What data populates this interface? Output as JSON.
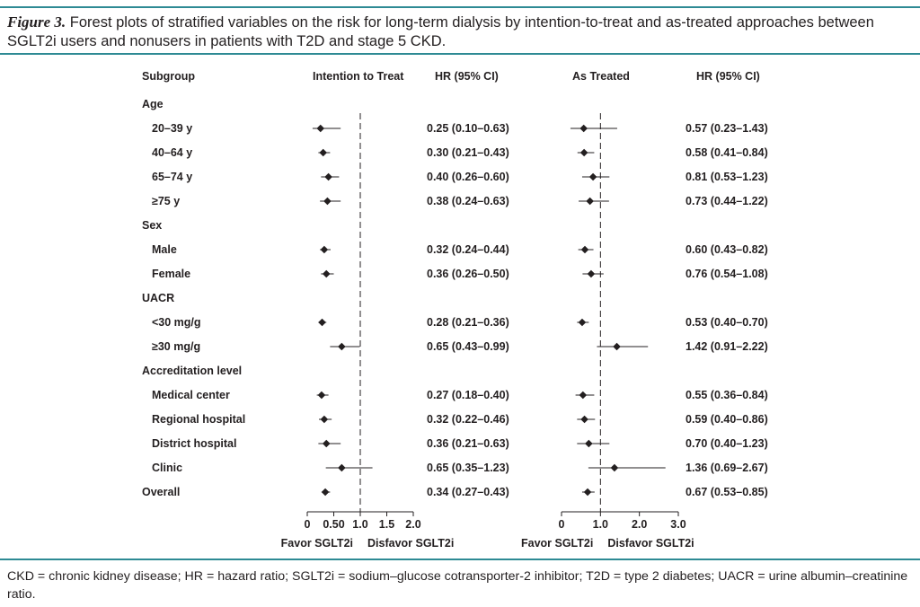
{
  "caption": {
    "figure_label": "Figure 3.",
    "text": " Forest plots of stratified variables on the risk for long-term dialysis by intention-to-treat and as-treated approaches between SGLT2i users and nonusers in patients with T2D and stage 5 CKD."
  },
  "footnote": "CKD = chronic kidney disease; HR = hazard ratio; SGLT2i = sodium–glucose cotransporter-2 inhibitor; T2D = type 2 diabetes; UACR = urine albumin–creatinine ratio.",
  "headers": {
    "subgroup": "Subgroup",
    "itt": "Intention to Treat",
    "itt_hr": "HR (95% CI)",
    "at": "As Treated",
    "at_hr": "HR (95% CI)"
  },
  "chart_data": [
    {
      "type": "forest",
      "name": "Intention to Treat",
      "reference_line": 1.0,
      "xlim": [
        0,
        2.0
      ],
      "ticks": [
        0,
        0.5,
        1.0,
        1.5,
        2.0
      ],
      "tick_labels": [
        "0",
        "0.50",
        "1.0",
        "1.5",
        "2.0"
      ],
      "favor_left": "Favor SGLT2i",
      "favor_right": "Disfavor SGLT2i"
    },
    {
      "type": "forest",
      "name": "As Treated",
      "reference_line": 1.0,
      "xlim": [
        0,
        3.0
      ],
      "ticks": [
        0,
        1.0,
        2.0,
        3.0
      ],
      "tick_labels": [
        "0",
        "1.0",
        "2.0",
        "3.0"
      ],
      "favor_left": "Favor SGLT2i",
      "favor_right": "Disfavor SGLT2i"
    }
  ],
  "rows": [
    {
      "kind": "group",
      "label": "Age"
    },
    {
      "kind": "sub",
      "label": "20–39 y",
      "itt": {
        "hr": 0.25,
        "lo": 0.1,
        "hi": 0.63,
        "text": "0.25 (0.10–0.63)"
      },
      "at": {
        "hr": 0.57,
        "lo": 0.23,
        "hi": 1.43,
        "text": "0.57 (0.23–1.43)"
      }
    },
    {
      "kind": "sub",
      "label": "40–64 y",
      "itt": {
        "hr": 0.3,
        "lo": 0.21,
        "hi": 0.43,
        "text": "0.30 (0.21–0.43)"
      },
      "at": {
        "hr": 0.58,
        "lo": 0.41,
        "hi": 0.84,
        "text": "0.58 (0.41–0.84)"
      }
    },
    {
      "kind": "sub",
      "label": "65–74 y",
      "itt": {
        "hr": 0.4,
        "lo": 0.26,
        "hi": 0.6,
        "text": "0.40 (0.26–0.60)"
      },
      "at": {
        "hr": 0.81,
        "lo": 0.53,
        "hi": 1.23,
        "text": "0.81 (0.53–1.23)"
      }
    },
    {
      "kind": "sub",
      "label": "≥75 y",
      "itt": {
        "hr": 0.38,
        "lo": 0.24,
        "hi": 0.63,
        "text": "0.38 (0.24–0.63)"
      },
      "at": {
        "hr": 0.73,
        "lo": 0.44,
        "hi": 1.22,
        "text": "0.73 (0.44–1.22)"
      }
    },
    {
      "kind": "group",
      "label": "Sex"
    },
    {
      "kind": "sub",
      "label": "Male",
      "itt": {
        "hr": 0.32,
        "lo": 0.24,
        "hi": 0.44,
        "text": "0.32 (0.24–0.44)"
      },
      "at": {
        "hr": 0.6,
        "lo": 0.43,
        "hi": 0.82,
        "text": "0.60 (0.43–0.82)"
      }
    },
    {
      "kind": "sub",
      "label": "Female",
      "itt": {
        "hr": 0.36,
        "lo": 0.26,
        "hi": 0.5,
        "text": "0.36 (0.26–0.50)"
      },
      "at": {
        "hr": 0.76,
        "lo": 0.54,
        "hi": 1.08,
        "text": "0.76 (0.54–1.08)"
      }
    },
    {
      "kind": "group",
      "label": "UACR"
    },
    {
      "kind": "sub",
      "label": "<30 mg/g",
      "itt": {
        "hr": 0.28,
        "lo": 0.21,
        "hi": 0.36,
        "text": "0.28 (0.21–0.36)"
      },
      "at": {
        "hr": 0.53,
        "lo": 0.4,
        "hi": 0.7,
        "text": "0.53 (0.40–0.70)"
      }
    },
    {
      "kind": "sub",
      "label": "≥30 mg/g",
      "itt": {
        "hr": 0.65,
        "lo": 0.43,
        "hi": 0.99,
        "text": "0.65 (0.43–0.99)"
      },
      "at": {
        "hr": 1.42,
        "lo": 0.91,
        "hi": 2.22,
        "text": "1.42 (0.91–2.22)"
      }
    },
    {
      "kind": "group",
      "label": "Accreditation level"
    },
    {
      "kind": "sub",
      "label": "Medical center",
      "itt": {
        "hr": 0.27,
        "lo": 0.18,
        "hi": 0.4,
        "text": "0.27 (0.18–0.40)"
      },
      "at": {
        "hr": 0.55,
        "lo": 0.36,
        "hi": 0.84,
        "text": "0.55 (0.36–0.84)"
      }
    },
    {
      "kind": "sub",
      "label": "Regional hospital",
      "itt": {
        "hr": 0.32,
        "lo": 0.22,
        "hi": 0.46,
        "text": "0.32 (0.22–0.46)"
      },
      "at": {
        "hr": 0.59,
        "lo": 0.4,
        "hi": 0.86,
        "text": "0.59 (0.40–0.86)"
      }
    },
    {
      "kind": "sub",
      "label": "District hospital",
      "itt": {
        "hr": 0.36,
        "lo": 0.21,
        "hi": 0.63,
        "text": "0.36 (0.21–0.63)"
      },
      "at": {
        "hr": 0.7,
        "lo": 0.4,
        "hi": 1.23,
        "text": "0.70 (0.40–1.23)"
      }
    },
    {
      "kind": "sub",
      "label": "Clinic",
      "itt": {
        "hr": 0.65,
        "lo": 0.35,
        "hi": 1.23,
        "text": "0.65 (0.35–1.23)"
      },
      "at": {
        "hr": 1.36,
        "lo": 0.69,
        "hi": 2.67,
        "text": "1.36 (0.69–2.67)"
      }
    },
    {
      "kind": "overall",
      "label": "Overall",
      "itt": {
        "hr": 0.34,
        "lo": 0.27,
        "hi": 0.43,
        "text": "0.34 (0.27–0.43)"
      },
      "at": {
        "hr": 0.67,
        "lo": 0.53,
        "hi": 0.85,
        "text": "0.67 (0.53–0.85)"
      }
    }
  ]
}
